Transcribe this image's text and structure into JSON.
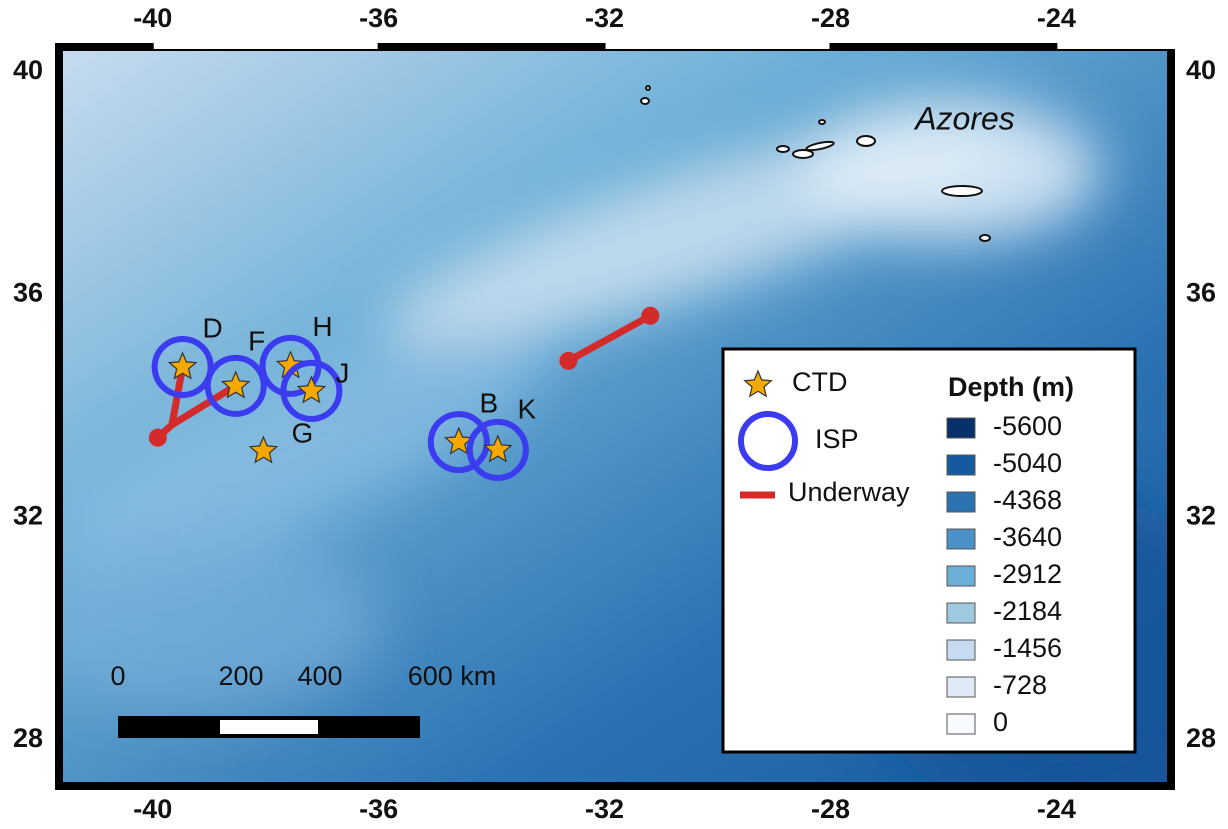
{
  "map": {
    "xlim": [
      -41.73,
      -21.9
    ],
    "ylim": [
      27.1,
      40.52
    ],
    "xticks": [
      -40,
      -36,
      -32,
      -28,
      -24
    ],
    "yticks": [
      28,
      32,
      36,
      40
    ],
    "region_label": "Azores",
    "stations": [
      {
        "label": "D",
        "lon": -39.47,
        "lat": 34.7,
        "isp": true
      },
      {
        "label": "F",
        "lon": -38.53,
        "lat": 34.36,
        "isp": true
      },
      {
        "label": "H",
        "lon": -37.56,
        "lat": 34.72,
        "isp": true
      },
      {
        "label": "J",
        "lon": -37.19,
        "lat": 34.27,
        "isp": true
      },
      {
        "label": "G",
        "lon": -38.04,
        "lat": 33.19,
        "isp": false
      },
      {
        "label": "B",
        "lon": -34.58,
        "lat": 33.35,
        "isp": true
      },
      {
        "label": "K",
        "lon": -33.89,
        "lat": 33.21,
        "isp": true
      }
    ],
    "underway": [
      {
        "lon": [
          -39.47,
          -39.66,
          -39.91
        ],
        "lat": [
          34.7,
          33.66,
          33.43
        ]
      },
      {
        "lon": [
          -39.66,
          -38.6
        ],
        "lat": [
          33.66,
          34.32
        ]
      },
      {
        "lon": [
          -32.64,
          -31.19
        ],
        "lat": [
          34.81,
          35.62
        ]
      }
    ],
    "scale_bar": {
      "labels": [
        "0",
        "200",
        "400",
        "600 km"
      ]
    },
    "legend": {
      "ctd": "CTD",
      "isp": "ISP",
      "underway": "Underway",
      "depth_title": "Depth (m)",
      "depth_levels": [
        -5600,
        -5040,
        -4368,
        -3640,
        -2912,
        -2184,
        -1456,
        -728,
        0
      ],
      "depth_colors": [
        "#08306b",
        "#155a9e",
        "#2b72b3",
        "#4a91c8",
        "#6baed6",
        "#9ecae1",
        "#c6dbef",
        "#deebf7",
        "#f7fbff"
      ]
    }
  }
}
